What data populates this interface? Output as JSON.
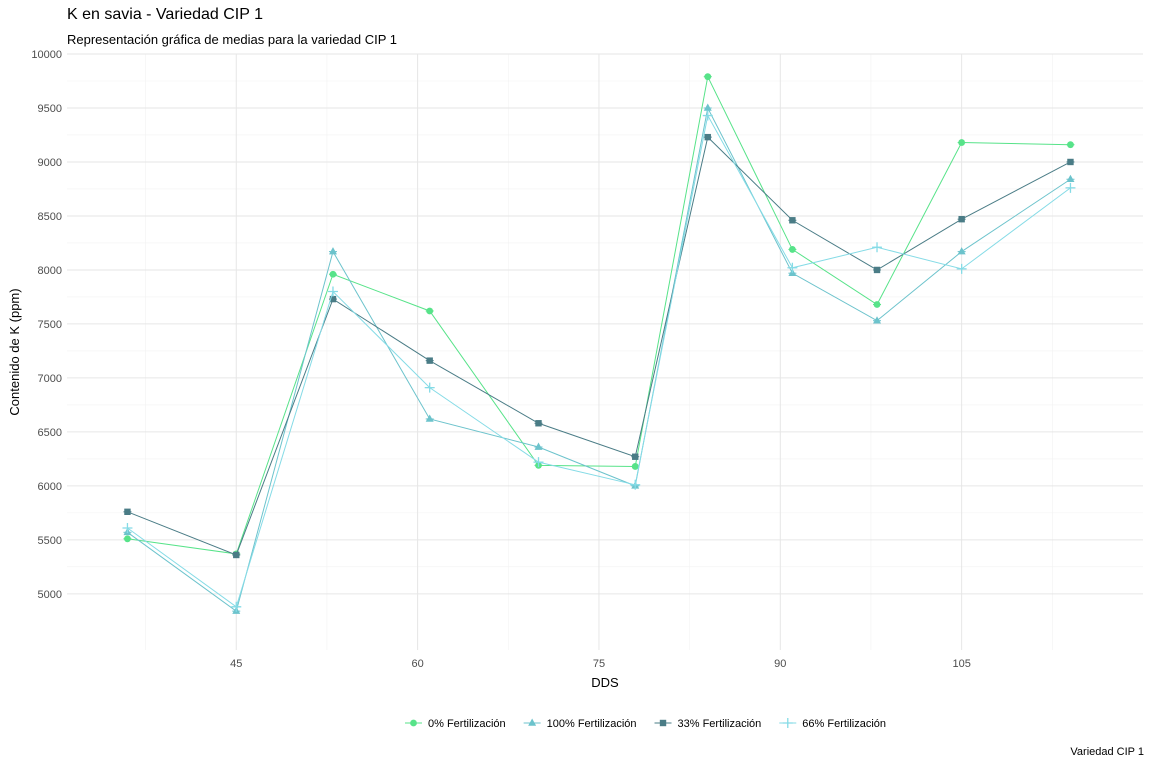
{
  "chart_data": {
    "type": "line",
    "title": "K en savia - Variedad CIP 1",
    "subtitle": "Representación gráfica de medias para la variedad CIP 1",
    "caption": "Variedad CIP 1",
    "xlabel": "DDS",
    "ylabel": "Contenido de K (ppm)",
    "xlim": [
      31,
      120
    ],
    "ylim": [
      4480,
      10000
    ],
    "xticks": [
      45,
      60,
      75,
      90,
      105
    ],
    "yticks": [
      5000,
      5500,
      6000,
      6500,
      7000,
      7500,
      8000,
      8500,
      9000,
      9500,
      10000
    ],
    "grid": true,
    "legend_position": "bottom",
    "x": [
      36,
      45,
      53,
      61,
      70,
      78,
      84,
      91,
      98,
      105,
      114
    ],
    "series": [
      {
        "name": "0% Fertilización",
        "marker": "circle",
        "color": "#57e389",
        "values": [
          5510,
          5370,
          7960,
          7620,
          6190,
          6180,
          9790,
          8190,
          7680,
          9180,
          9160
        ]
      },
      {
        "name": "100% Fertilización",
        "marker": "triangle",
        "color": "#6cc3cc",
        "values": [
          5570,
          4840,
          8170,
          6620,
          6360,
          6000,
          9500,
          7970,
          7530,
          8170,
          8840
        ]
      },
      {
        "name": "33% Fertilización",
        "marker": "square",
        "color": "#4a7c86",
        "values": [
          5760,
          5360,
          7730,
          7160,
          6580,
          6270,
          9230,
          8460,
          8000,
          8470,
          9000
        ]
      },
      {
        "name": "66% Fertilización",
        "marker": "plus",
        "color": "#85dbe6",
        "values": [
          5610,
          4880,
          7800,
          6910,
          6220,
          6010,
          9430,
          8020,
          8210,
          8010,
          8760
        ]
      }
    ]
  }
}
